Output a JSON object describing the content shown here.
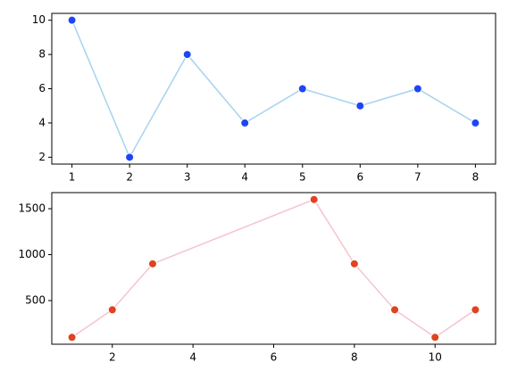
{
  "chart_data": [
    {
      "type": "line",
      "x": [
        1,
        2,
        3,
        4,
        5,
        6,
        7,
        8
      ],
      "values": [
        10,
        2,
        8,
        4,
        6,
        5,
        6,
        4
      ],
      "color": "#a6d3ef",
      "marker_color": "#1f45f5",
      "xlim": [
        0.65,
        8.35
      ],
      "ylim": [
        1.6,
        10.4
      ],
      "xticks": [
        1,
        2,
        3,
        4,
        5,
        6,
        7,
        8
      ],
      "yticks": [
        2,
        4,
        6,
        8,
        10
      ]
    },
    {
      "type": "line",
      "x": [
        1,
        2,
        3,
        7,
        8,
        9,
        10,
        11
      ],
      "values": [
        100,
        400,
        900,
        1600,
        900,
        400,
        100,
        400
      ],
      "color": "#f5c3cc",
      "marker_color": "#e0431f",
      "xlim": [
        0.5,
        11.5
      ],
      "ylim": [
        25,
        1675
      ],
      "xticks": [
        2,
        4,
        6,
        8,
        10
      ],
      "yticks": [
        500,
        1000,
        1500
      ]
    }
  ]
}
